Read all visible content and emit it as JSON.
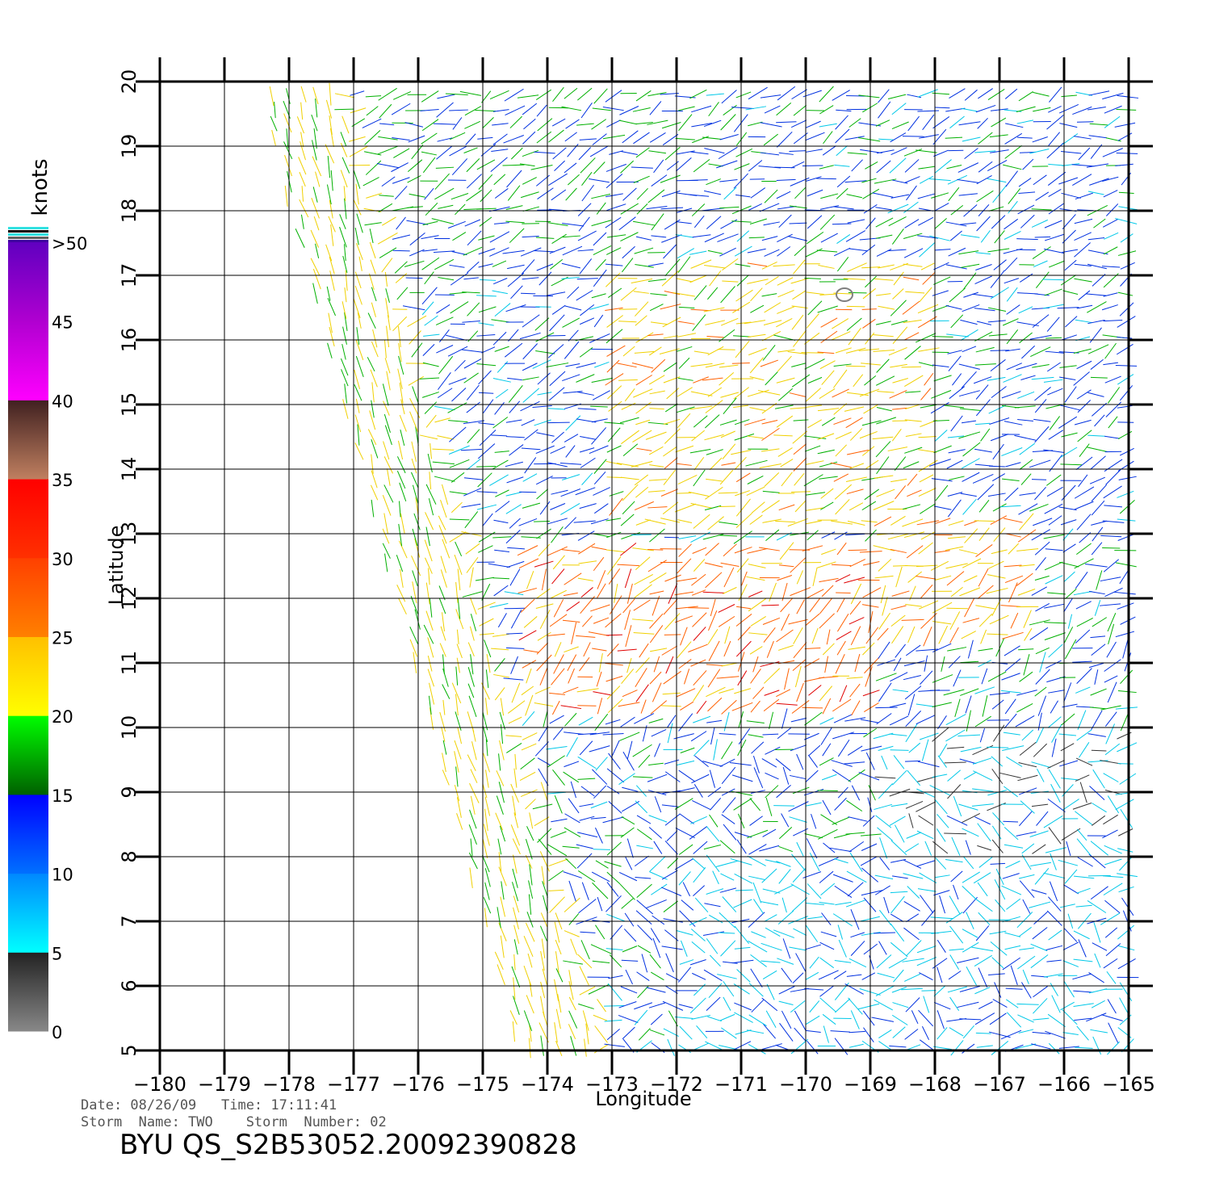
{
  "map": {
    "lon_ticks": [
      -180,
      -179,
      -178,
      -177,
      -176,
      -175,
      -174,
      -173,
      -172,
      -171,
      -170,
      -169,
      -168,
      -167,
      -166,
      -165
    ],
    "lat_ticks": [
      5,
      6,
      7,
      8,
      9,
      10,
      11,
      12,
      13,
      14,
      15,
      16,
      17,
      18,
      19,
      20
    ],
    "lon_range": [
      -180,
      -165
    ],
    "lat_range": [
      5,
      20
    ],
    "xlabel": "Longitude",
    "ylabel": "Latitude",
    "grid": true,
    "swath_west_edge": [
      [
        -178.5,
        20
      ],
      [
        -175,
        7
      ]
    ],
    "feature": "wind vector field (scatterometer swath)"
  },
  "colorbar": {
    "unit": "knots",
    "labels": [
      ">50",
      "45",
      "40",
      "35",
      "30",
      "25",
      "20",
      "15",
      "10",
      "5",
      "0"
    ],
    "bands": [
      {
        "from": 0,
        "to": 5,
        "colors": [
          "#888888",
          "#222222"
        ]
      },
      {
        "from": 5,
        "to": 10,
        "colors": [
          "#00ffff",
          "#0088ff"
        ]
      },
      {
        "from": 10,
        "to": 15,
        "colors": [
          "#0070ff",
          "#0000ff"
        ]
      },
      {
        "from": 15,
        "to": 20,
        "colors": [
          "#006000",
          "#00ff00"
        ]
      },
      {
        "from": 20,
        "to": 25,
        "colors": [
          "#ffff00",
          "#ffc000"
        ]
      },
      {
        "from": 25,
        "to": 30,
        "colors": [
          "#ff8000",
          "#ff4000"
        ]
      },
      {
        "from": 30,
        "to": 35,
        "colors": [
          "#ff3000",
          "#ff0000"
        ]
      },
      {
        "from": 35,
        "to": 40,
        "colors": [
          "#c08060",
          "#402020"
        ]
      },
      {
        "from": 40,
        "to": 45,
        "colors": [
          "#ff00ff",
          "#b000d0"
        ]
      },
      {
        "from": 45,
        "to": 50,
        "colors": [
          "#b000d0",
          "#6000c0"
        ]
      }
    ]
  },
  "footer": {
    "date_line": "Date: 08/26/09   Time: 17:11:41",
    "storm_line": "Storm  Name: TWO    Storm  Number: 02",
    "product_id": "BYU  QS_S2B53052.20092390828"
  }
}
